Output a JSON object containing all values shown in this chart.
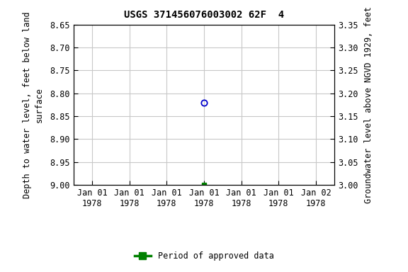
{
  "title": "USGS 371456076003002 62F  4",
  "ylabel_left": "Depth to water level, feet below land\nsurface",
  "ylabel_right": "Groundwater level above NGVD 1929, feet",
  "ylim_left": [
    9.0,
    8.65
  ],
  "ylim_right": [
    3.0,
    3.35
  ],
  "yticks_left": [
    8.65,
    8.7,
    8.75,
    8.8,
    8.85,
    8.9,
    8.95,
    9.0
  ],
  "yticks_right": [
    3.0,
    3.05,
    3.1,
    3.15,
    3.2,
    3.25,
    3.3,
    3.35
  ],
  "ytick_labels_left": [
    "8.65",
    "8.70",
    "8.75",
    "8.80",
    "8.85",
    "8.90",
    "8.95",
    "9.00"
  ],
  "ytick_labels_right": [
    "3.00",
    "3.05",
    "3.10",
    "3.15",
    "3.20",
    "3.25",
    "3.30",
    "3.35"
  ],
  "data_blue_x": 3,
  "data_blue_y": 8.82,
  "data_green_x": 3,
  "data_green_y": 9.0,
  "blue_color": "#0000cc",
  "green_color": "#008000",
  "bg_color": "#ffffff",
  "grid_color": "#c8c8c8",
  "legend_label": "Period of approved data",
  "font_family": "DejaVu Sans Mono",
  "title_fontsize": 10,
  "tick_fontsize": 8.5,
  "label_fontsize": 8.5,
  "xtick_labels": [
    "Jan 01\n1978",
    "Jan 01\n1978",
    "Jan 01\n1978",
    "Jan 01\n1978",
    "Jan 01\n1978",
    "Jan 01\n1978",
    "Jan 02\n1978"
  ],
  "xtick_positions": [
    0,
    1,
    2,
    3,
    4,
    5,
    6
  ],
  "xlim": [
    -0.5,
    6.5
  ]
}
